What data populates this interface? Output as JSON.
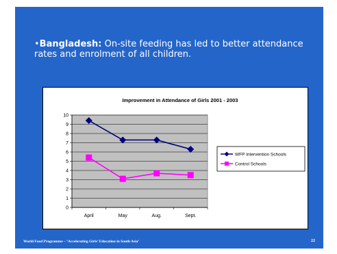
{
  "slide": {
    "bullet": "•",
    "heading_bold": "Bangladesh:",
    "heading_text": " On-site feeding has led to better attendance rates and enrolment of all children.",
    "footer": "World Food Programme – ‘Accelerating Girls’ Education in South Asia’",
    "page_number": "22",
    "background_color": "#2465c9"
  },
  "chart_data": {
    "type": "line",
    "title": "Improvement in Attendance of Girls 2001 - 2003",
    "categories": [
      "April",
      "May",
      "Aug.",
      "Sept."
    ],
    "ylim": [
      0,
      10
    ],
    "yticks": [
      "0",
      "1",
      "2",
      "3",
      "4",
      "5",
      "6",
      "7",
      "8",
      "9",
      "10"
    ],
    "grid": true,
    "legend_position": "right",
    "plot_background": "#c0c0c0",
    "series": [
      {
        "name": "WFP Intervention Schools",
        "values": [
          9.4,
          7.3,
          7.3,
          6.3
        ],
        "color": "#00007f",
        "marker": "diamond"
      },
      {
        "name": "Control Schools",
        "values": [
          5.4,
          3.1,
          3.7,
          3.5
        ],
        "color": "#ff00ff",
        "marker": "square"
      }
    ]
  }
}
